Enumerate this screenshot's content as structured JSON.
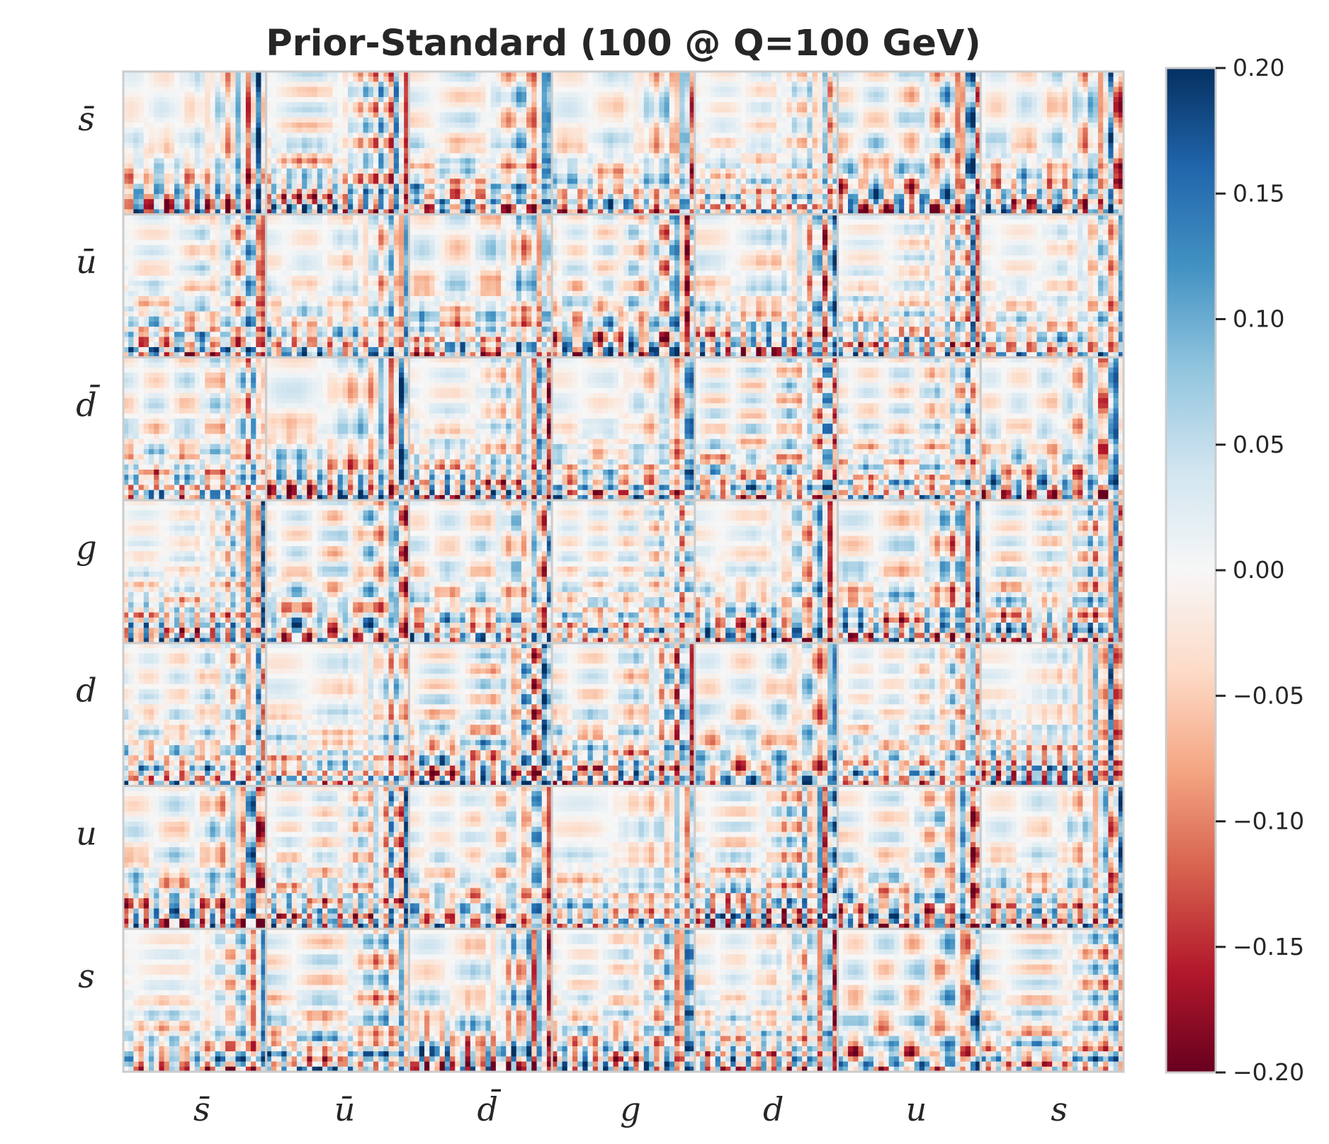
{
  "chart_data": {
    "type": "heatmap",
    "title": "Prior-Standard (100 @ Q=100 GeV)",
    "row_labels": [
      "s̄",
      "ū",
      "d̄",
      "g",
      "d",
      "u",
      "s"
    ],
    "col_labels": [
      "s̄",
      "ū",
      "d̄",
      "g",
      "d",
      "u",
      "s"
    ],
    "colorbar": {
      "ticks": [
        "0.20",
        "0.15",
        "0.10",
        "0.05",
        "0.00",
        "−0.05",
        "−0.10",
        "−0.15",
        "−0.20"
      ],
      "tick_values": [
        0.2,
        0.15,
        0.1,
        0.05,
        0.0,
        -0.05,
        -0.1,
        -0.15,
        -0.2
      ],
      "range": [
        -0.2,
        0.2
      ],
      "colormap": "RdBu",
      "stops": [
        "#67001f",
        "#b2182b",
        "#d6604d",
        "#f4a582",
        "#fddbc7",
        "#f7f7f7",
        "#d1e5f0",
        "#92c5de",
        "#4393c3",
        "#2166ac",
        "#053061"
      ]
    },
    "grid": false,
    "block_border_color": "#cccccc"
  }
}
